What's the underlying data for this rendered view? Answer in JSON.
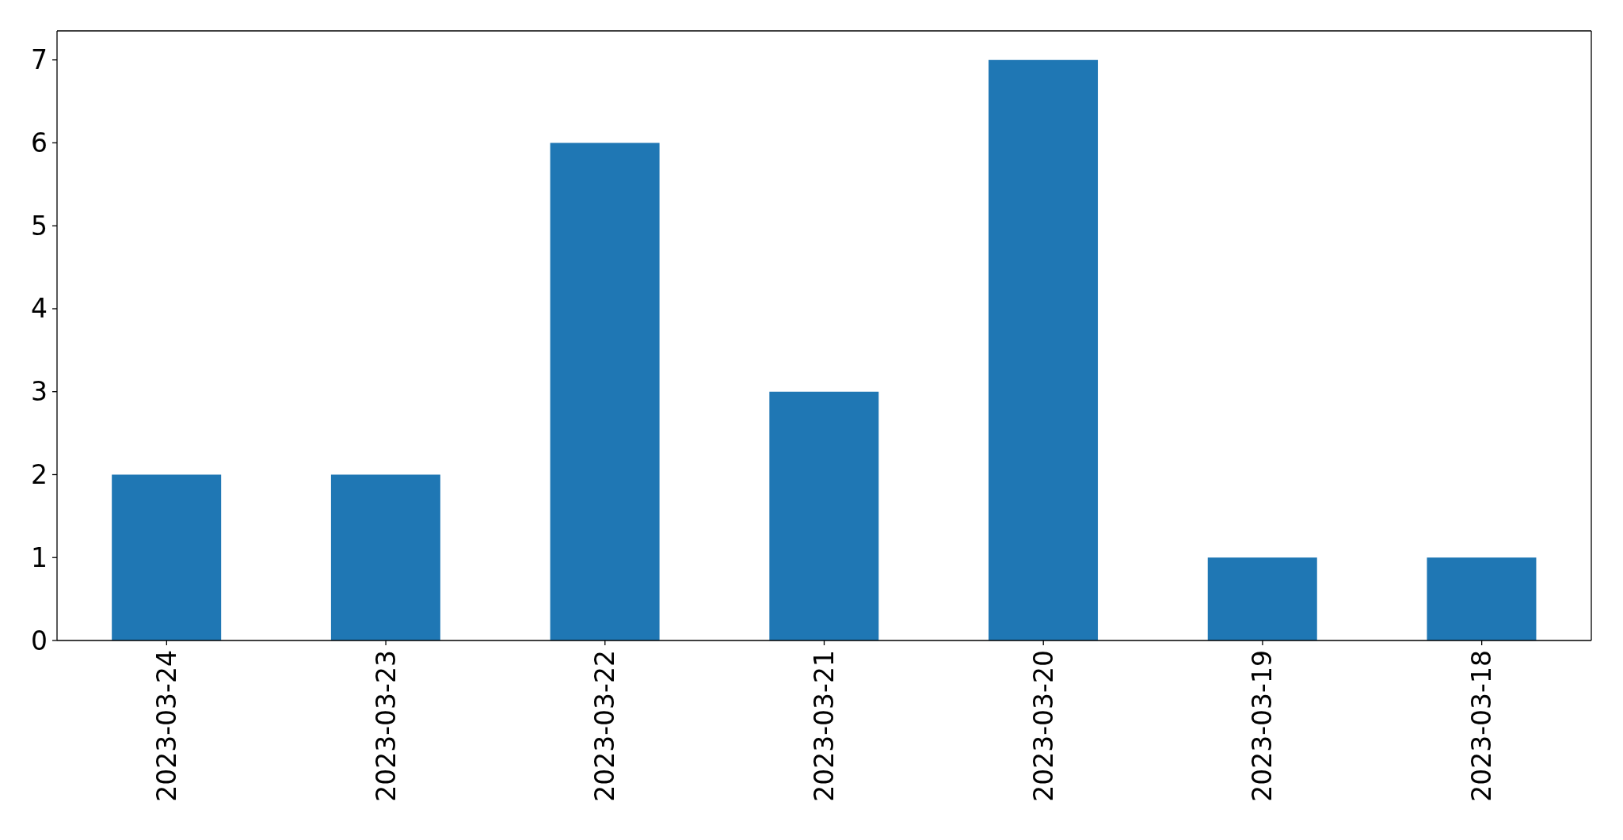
{
  "chart_data": {
    "type": "bar",
    "categories": [
      "2023-03-24",
      "2023-03-23",
      "2023-03-22",
      "2023-03-21",
      "2023-03-20",
      "2023-03-19",
      "2023-03-18"
    ],
    "values": [
      2,
      2,
      6,
      3,
      7,
      1,
      1
    ],
    "color": "#1f77b4",
    "ylim": [
      0,
      7.35
    ],
    "yticks": [
      0,
      1,
      2,
      3,
      4,
      5,
      6,
      7
    ]
  }
}
